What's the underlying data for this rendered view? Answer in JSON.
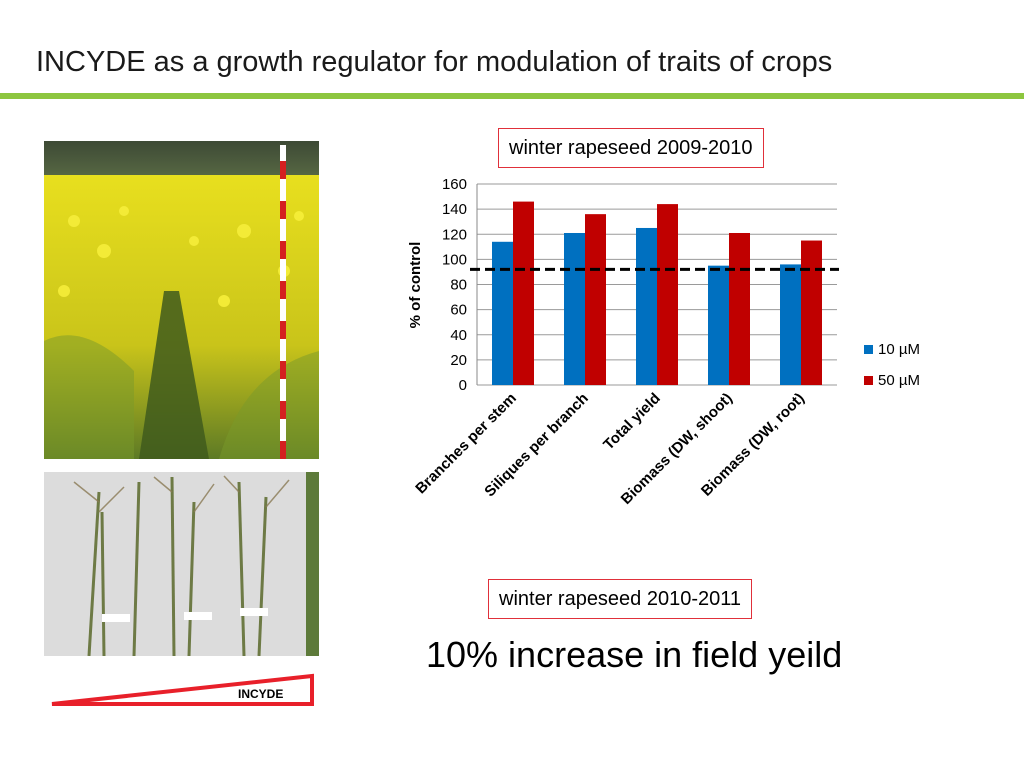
{
  "slide": {
    "title": "INCYDE as a growth regulator for modulation of traits of crops",
    "accent_color": "#8dc63f",
    "box_2009": "winter rapeseed 2009-2010",
    "box_2010": "winter rapeseed 2010-2011",
    "headline": "10% increase in field yeild",
    "incyde_label": "INCYDE",
    "wedge_color": "#e8202a"
  },
  "chart_data": {
    "type": "bar",
    "categories": [
      "Branches per stem",
      "Siliques per branch",
      "Total yield",
      "Biomass (DW, shoot)",
      "Biomass (DW, root)"
    ],
    "series": [
      {
        "name": "10 µM",
        "color": "#0070c0",
        "values": [
          114,
          121,
          125,
          95,
          96
        ]
      },
      {
        "name": "50 µM",
        "color": "#c00000",
        "values": [
          146,
          136,
          144,
          121,
          115
        ]
      }
    ],
    "ylabel": "% of control",
    "ylim": [
      0,
      160
    ],
    "yticks": [
      0,
      20,
      40,
      60,
      80,
      100,
      120,
      140,
      160
    ],
    "reference_line": 92,
    "grid": true,
    "legend": "right"
  }
}
